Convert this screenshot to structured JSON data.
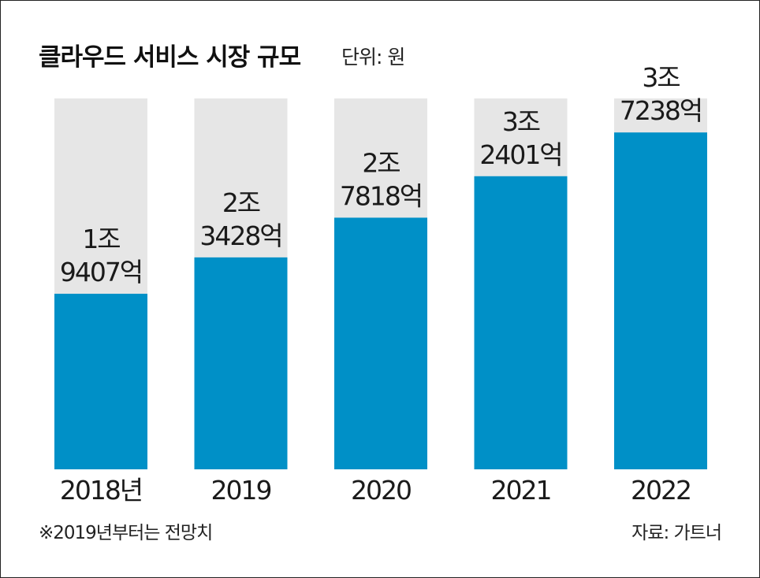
{
  "header": {
    "title": "클라우드 서비스 시장 규모",
    "unit": "단위: 원"
  },
  "footer": {
    "note": "※2019년부터는 전망치",
    "source": "자료: 가트너"
  },
  "colors": {
    "bar": "#0090c7",
    "track": "#e6e6e6"
  },
  "chart_data": {
    "type": "bar",
    "title": "클라우드 서비스 시장 규모",
    "unit": "원",
    "categories": [
      "2018년",
      "2019",
      "2020",
      "2021",
      "2022"
    ],
    "values": [
      19407,
      23428,
      27818,
      32401,
      37238
    ],
    "value_unit": "억 원",
    "ylim": [
      0,
      41000
    ],
    "data_labels": [
      [
        "1조",
        "9407억"
      ],
      [
        "2조",
        "3428억"
      ],
      [
        "2조",
        "7818억"
      ],
      [
        "3조",
        "2401억"
      ],
      [
        "3조",
        "7238억"
      ]
    ],
    "grid": false,
    "legend": "none"
  }
}
